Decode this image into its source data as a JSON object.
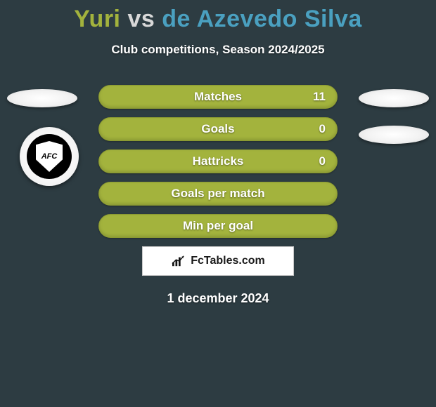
{
  "title": {
    "player1": "Yuri",
    "vs": "vs",
    "player2": "de Azevedo Silva",
    "player1_color": "#a3b33d",
    "vs_color": "#d8d8d8",
    "player2_color": "#4aa0c0"
  },
  "subtitle": "Club competitions, Season 2024/2025",
  "stats": [
    {
      "label": "Matches",
      "value": "11",
      "bg": "#a3b33d",
      "border": "#8b9a32"
    },
    {
      "label": "Goals",
      "value": "0",
      "bg": "#a3b33d",
      "border": "#8b9a32"
    },
    {
      "label": "Hattricks",
      "value": "0",
      "bg": "#a3b33d",
      "border": "#8b9a32"
    },
    {
      "label": "Goals per match",
      "value": "",
      "bg": "#a3b33d",
      "border": "#8b9a32"
    },
    {
      "label": "Min per goal",
      "value": "",
      "bg": "#a3b33d",
      "border": "#8b9a32"
    }
  ],
  "brand": {
    "text": "FcTables.com"
  },
  "date": "1 december 2024",
  "club_badge": {
    "letters": "AFC"
  },
  "colors": {
    "background": "#2d3c42",
    "text": "#ffffff"
  }
}
